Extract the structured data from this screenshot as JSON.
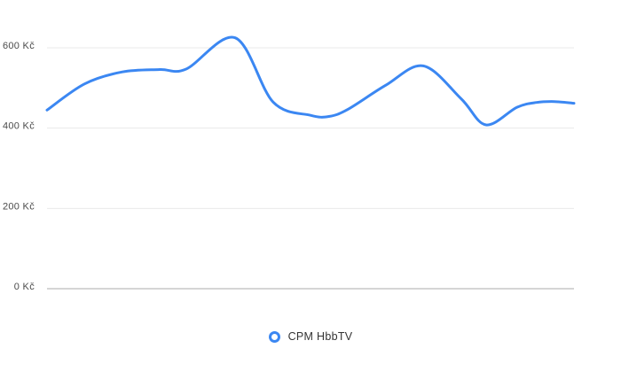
{
  "page": {
    "background": "#ffffff"
  },
  "chart_data": {
    "type": "line",
    "title": "",
    "xlabel": "",
    "ylabel": "",
    "y_unit": "Kč",
    "ylim": [
      0,
      660
    ],
    "grid": "horizontal-only",
    "x_tick_labels": [],
    "y_ticks": [
      {
        "value": 0,
        "label": "0 Kč"
      },
      {
        "value": 200,
        "label": "200 Kč"
      },
      {
        "value": 400,
        "label": "400 Kč"
      },
      {
        "value": 600,
        "label": "600 Kč"
      }
    ],
    "legend_position": "bottom-center",
    "series": [
      {
        "name": "CPM HbbTV",
        "color": "#3b87f2",
        "line_width": 3,
        "smooth": true,
        "points": [
          {
            "x": 0.0,
            "value": 445
          },
          {
            "x": 0.071,
            "value": 510
          },
          {
            "x": 0.143,
            "value": 540
          },
          {
            "x": 0.214,
            "value": 546
          },
          {
            "x": 0.264,
            "value": 547
          },
          {
            "x": 0.357,
            "value": 625
          },
          {
            "x": 0.429,
            "value": 465
          },
          {
            "x": 0.5,
            "value": 432
          },
          {
            "x": 0.535,
            "value": 429
          },
          {
            "x": 0.571,
            "value": 447
          },
          {
            "x": 0.643,
            "value": 507
          },
          {
            "x": 0.714,
            "value": 555
          },
          {
            "x": 0.786,
            "value": 473
          },
          {
            "x": 0.833,
            "value": 408
          },
          {
            "x": 0.892,
            "value": 452
          },
          {
            "x": 0.929,
            "value": 464
          },
          {
            "x": 0.963,
            "value": 466
          },
          {
            "x": 1.0,
            "value": 462
          }
        ]
      }
    ]
  },
  "legend": {
    "items": [
      {
        "label": "CPM HbbTV",
        "marker": "ring",
        "color": "#3b87f2"
      }
    ]
  },
  "colors": {
    "grid_line": "#e9e9e9",
    "axis_zero_line": "#ababab",
    "tick_label": "#4b4b4b",
    "legend_text": "#333333",
    "series_blue": "#3b87f2"
  }
}
